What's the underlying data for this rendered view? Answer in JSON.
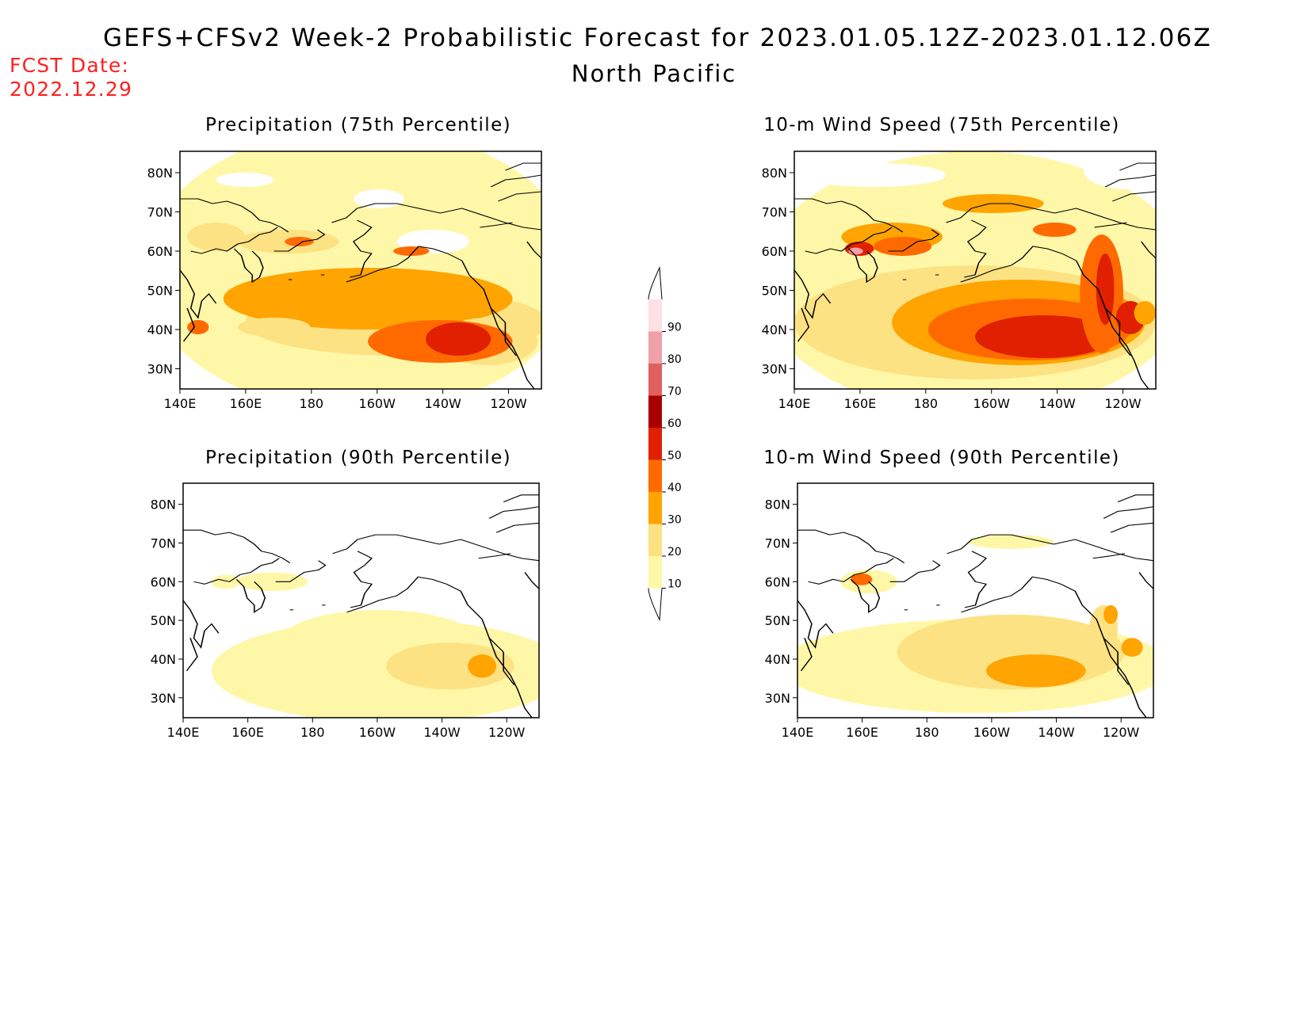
{
  "header": {
    "title": "GEFS+CFSv2 Week-2 Probabilistic Forecast for 2023.01.05.12Z-2023.01.12.06Z",
    "region": "North Pacific",
    "fcst_label": "FCST Date:",
    "fcst_date": "2022.12.29"
  },
  "axes": {
    "lon_ticks": [
      "140E",
      "160E",
      "180",
      "160W",
      "140W",
      "120W"
    ],
    "lat_ticks": [
      "80N",
      "70N",
      "60N",
      "50N",
      "40N",
      "30N"
    ]
  },
  "panels": [
    {
      "id": "precip-75",
      "title": "Precipitation (75th Percentile)"
    },
    {
      "id": "wind-75",
      "title": "10-m Wind Speed (75th Percentile)"
    },
    {
      "id": "precip-90",
      "title": "Precipitation (90th Percentile)"
    },
    {
      "id": "wind-90",
      "title": "10-m Wind Speed (90th Percentile)"
    }
  ],
  "colorbar": {
    "levels": [
      "10",
      "20",
      "30",
      "40",
      "50",
      "60",
      "70",
      "80",
      "90"
    ],
    "colors": [
      "#fff7a8",
      "#fde283",
      "#ffa400",
      "#ff6a00",
      "#e02000",
      "#a80000",
      "#e06060",
      "#f0a0a8",
      "#ffe0e4"
    ]
  }
}
